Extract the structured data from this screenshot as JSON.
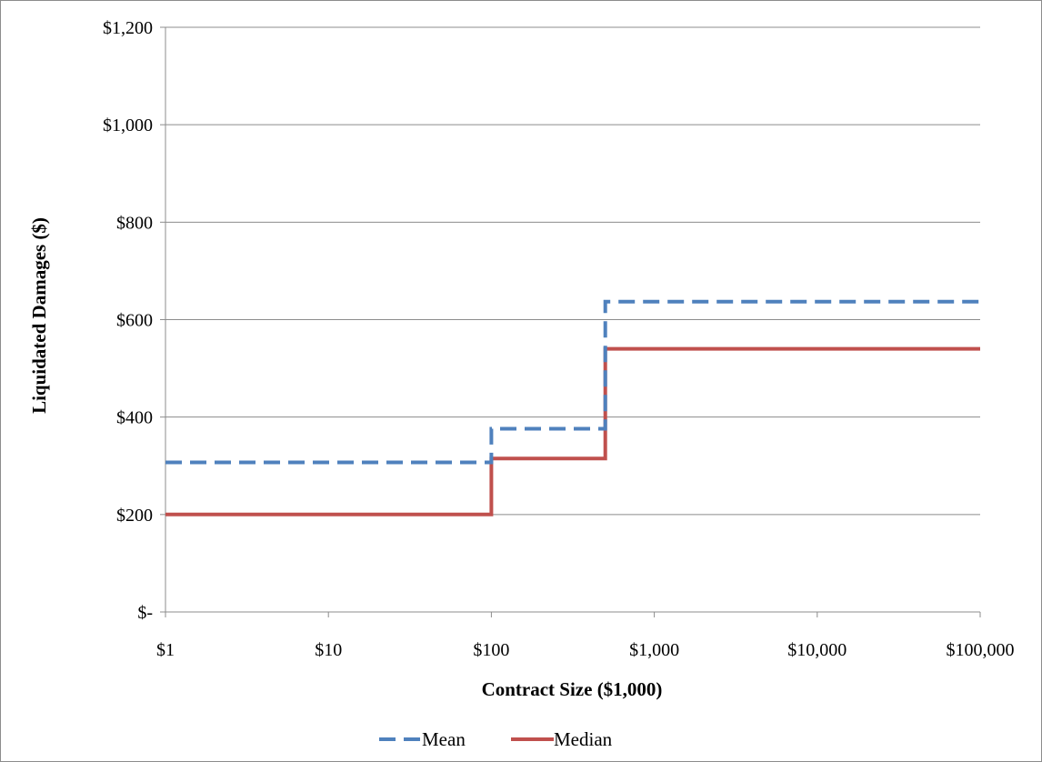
{
  "chart_data": {
    "type": "line",
    "step": true,
    "x_scale": "log",
    "xlabel": "Contract Size ($1,000)",
    "ylabel": "Liquidated Damages ($)",
    "xlim": [
      1,
      100000
    ],
    "ylim": [
      0,
      1200
    ],
    "x_ticks": [
      1,
      10,
      100,
      1000,
      10000,
      100000
    ],
    "x_tick_labels": [
      "$1",
      "$10",
      "$100",
      "$1,000",
      "$10,000",
      "$100,000"
    ],
    "y_ticks": [
      0,
      200,
      400,
      600,
      800,
      1000,
      1200
    ],
    "y_tick_labels": [
      "$-",
      "$200",
      "$400",
      "$600",
      "$800",
      "$1,000",
      "$1,200"
    ],
    "grid": "horizontal",
    "legend_position": "bottom",
    "series": [
      {
        "name": "Mean",
        "color": "#4f81bd",
        "line_style": "dashed",
        "x": [
          1,
          100,
          100,
          500,
          500,
          100000
        ],
        "y": [
          307,
          307,
          376,
          376,
          637,
          637
        ]
      },
      {
        "name": "Median",
        "color": "#c0504d",
        "line_style": "solid",
        "x": [
          1,
          100,
          100,
          500,
          500,
          100000
        ],
        "y": [
          200,
          200,
          315,
          315,
          540,
          540
        ]
      }
    ]
  }
}
